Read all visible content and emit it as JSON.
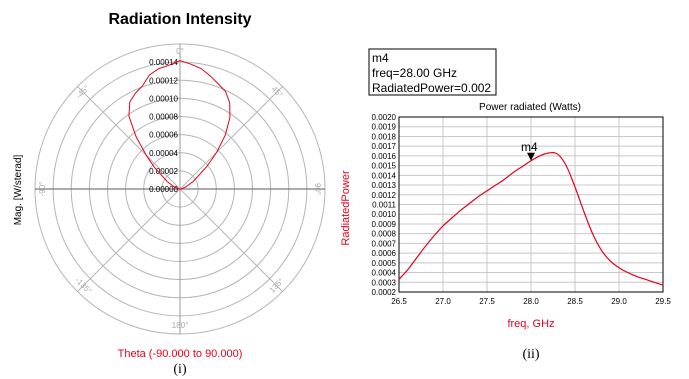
{
  "chart_data": [
    {
      "type": "polar",
      "title": "Radiation Intensity",
      "radial_label": "Mag. [W/sterad]",
      "angle_label": "Theta (-90.000 to 90.000)",
      "radial_ticks": [
        "0.00000",
        "0.00002",
        "0.00004",
        "0.00006",
        "0.00008",
        "0.00010",
        "0.00012",
        "0.00014"
      ],
      "rlim": [
        0,
        0.00014
      ],
      "angle_ticks": [
        "0°",
        "45°",
        "90°",
        "135°",
        "180°",
        "-135°",
        "-90°",
        "-45°"
      ],
      "series": [
        {
          "theta": [
            -90,
            -80,
            -70,
            -60,
            -50,
            -45,
            -40,
            -35,
            -30,
            -25,
            -20,
            -15,
            -10,
            -5,
            0,
            5,
            10,
            15,
            20,
            25,
            30,
            35,
            40,
            45,
            50,
            60,
            70,
            80,
            90
          ],
          "r": [
            0,
            2e-06,
            6e-06,
            1.4e-05,
            3.2e-05,
            4.6e-05,
            6.6e-05,
            8.6e-05,
            9.7e-05,
            0.000102,
            0.000106,
            0.000114,
            0.000118,
            0.00012,
            0.000124,
            0.000121,
            0.000118,
            0.000113,
            0.000108,
            0.000104,
            9.6e-05,
            8.4e-05,
            6.8e-05,
            5e-05,
            3.4e-05,
            1.5e-05,
            6e-06,
            2e-06,
            0
          ],
          "color": "#e8001c"
        }
      ],
      "caption": "(i)"
    },
    {
      "type": "line",
      "title": "Power radiated (Watts)",
      "xlabel": "freq, GHz",
      "ylabel": "RadiatedPower",
      "xlim": [
        26.5,
        29.5
      ],
      "ylim": [
        0.0002,
        0.002
      ],
      "x_ticks": [
        "26.5",
        "27.0",
        "27.5",
        "28.0",
        "28.5",
        "29.0",
        "29.5"
      ],
      "y_ticks": [
        "0.0002",
        "0.0003",
        "0.0004",
        "0.0005",
        "0.0006",
        "0.0007",
        "0.0008",
        "0.0009",
        "0.0010",
        "0.0011",
        "0.0012",
        "0.0013",
        "0.0014",
        "0.0015",
        "0.0016",
        "0.0017",
        "0.0018",
        "0.0019",
        "0.0020"
      ],
      "series": [
        {
          "x": [
            26.5,
            26.6,
            26.7,
            26.8,
            26.9,
            27.0,
            27.1,
            27.2,
            27.3,
            27.4,
            27.5,
            27.6,
            27.7,
            27.8,
            27.9,
            28.0,
            28.1,
            28.2,
            28.3,
            28.4,
            28.5,
            28.6,
            28.7,
            28.8,
            28.9,
            29.0,
            29.1,
            29.2,
            29.3,
            29.4,
            29.5
          ],
          "y": [
            0.00033,
            0.00043,
            0.00055,
            0.00067,
            0.00078,
            0.00088,
            0.00096,
            0.00104,
            0.00111,
            0.00118,
            0.00124,
            0.0013,
            0.00136,
            0.00143,
            0.00149,
            0.00155,
            0.0016,
            0.00163,
            0.00162,
            0.0015,
            0.00128,
            0.00103,
            0.0008,
            0.00063,
            0.00052,
            0.00045,
            0.0004,
            0.00036,
            0.00033,
            0.0003,
            0.00027
          ],
          "color": "#e8001c"
        }
      ],
      "marker": {
        "name": "m4",
        "x": 28.0,
        "y": 0.00155,
        "label_lines": [
          "m4",
          "freq=28.00 GHz",
          "RadiatedPower=0.002"
        ]
      },
      "caption": "(ii)"
    }
  ]
}
